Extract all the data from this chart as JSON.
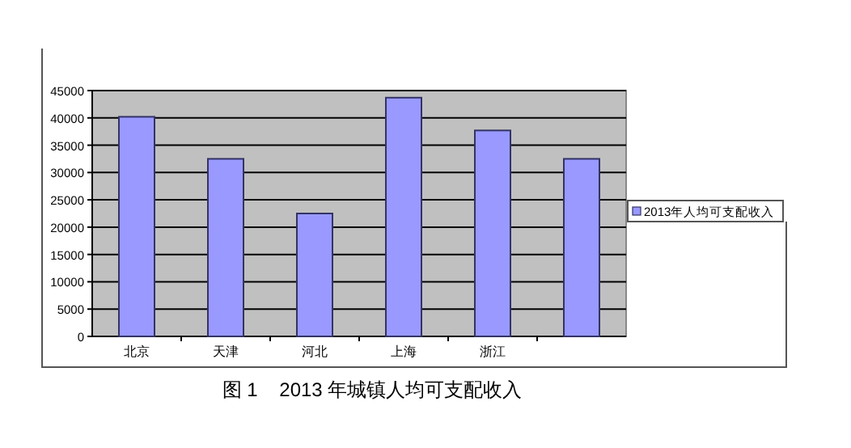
{
  "chart_data": {
    "type": "bar",
    "title": "图 1    2013 年城镇人均可支配收入",
    "categories": [
      "北京",
      "天津",
      "河北",
      "上海",
      "浙江",
      null
    ],
    "series": [
      {
        "name": "2013年人均可支配收入",
        "color": "#9999ff",
        "values": [
          40200,
          32500,
          22500,
          43700,
          37700,
          32500
        ]
      }
    ],
    "ylim": [
      0,
      45000
    ],
    "yticks": [
      0,
      5000,
      10000,
      15000,
      20000,
      25000,
      30000,
      35000,
      40000,
      45000
    ],
    "grid": "y",
    "legend": "right"
  }
}
